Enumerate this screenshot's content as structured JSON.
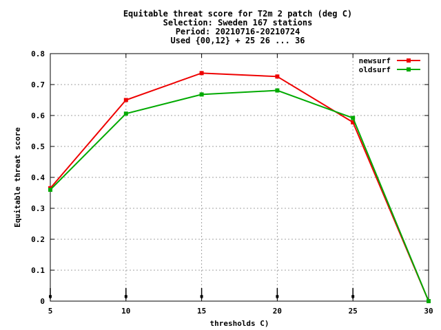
{
  "chart_data": {
    "type": "line",
    "title_lines": [
      "Equitable threat score  for T2m 2 patch (deg C)",
      "Selection: Sweden    167 stations",
      "Period: 20210716-20210724",
      "Used {00,12} + 25 26 ... 36"
    ],
    "xlabel": "thresholds C)",
    "ylabel": "Equitable threat score",
    "xlim": [
      5,
      30
    ],
    "ylim": [
      0,
      0.8
    ],
    "x_ticks": [
      5,
      10,
      15,
      20,
      25,
      30
    ],
    "y_ticks": [
      0,
      0.1,
      0.2,
      0.3,
      0.4,
      0.5,
      0.6,
      0.7,
      0.8
    ],
    "x_tick_labels": [
      "5",
      "10",
      "15",
      "20",
      "25",
      "30"
    ],
    "y_tick_labels": [
      "0",
      "0.1",
      "0.2",
      "0.3",
      "0.4",
      "0.5",
      "0.6",
      "0.7",
      "0.8"
    ],
    "grid": true,
    "legend_position": "top-right",
    "x": [
      5,
      10,
      15,
      20,
      25,
      30
    ],
    "series": [
      {
        "name": "newsurf",
        "color": "#ee0000",
        "values": [
          0.365,
          0.65,
          0.737,
          0.726,
          0.578,
          0.0
        ]
      },
      {
        "name": "oldsurf",
        "color": "#00aa00",
        "values": [
          0.36,
          0.606,
          0.668,
          0.681,
          0.592,
          0.0
        ]
      }
    ],
    "markers_at_zero": [
      5,
      10,
      15,
      20,
      25
    ]
  }
}
